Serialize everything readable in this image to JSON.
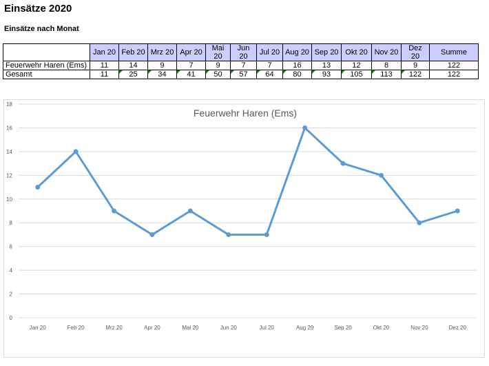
{
  "page": {
    "title": "Einsätze 2020",
    "subtitle": "Einsätze nach Monat"
  },
  "table": {
    "headers": [
      "Jan 20",
      "Feb 20",
      "Mrz 20",
      "Apr 20",
      "Mai 20",
      "Jun 20",
      "Jul 20",
      "Aug 20",
      "Sep 20",
      "Okt 20",
      "Nov 20",
      "Dez 20",
      "Summe"
    ],
    "rows": [
      {
        "label": "Feuerwehr Haren (Ems)",
        "values": [
          "11",
          "14",
          "9",
          "7",
          "9",
          "7",
          "7",
          "16",
          "13",
          "12",
          "8",
          "9",
          "122"
        ]
      },
      {
        "label": "Gesamt",
        "values": [
          "11",
          "25",
          "34",
          "41",
          "50",
          "57",
          "64",
          "80",
          "93",
          "105",
          "113",
          "122",
          "122"
        ]
      }
    ]
  },
  "chart_data": {
    "type": "line",
    "title": "Feuerwehr Haren (Ems)",
    "categories": [
      "Jan 20",
      "Feb 20",
      "Mrz 20",
      "Apr 20",
      "Mai 20",
      "Jun 20",
      "Jul 20",
      "Aug 20",
      "Sep 20",
      "Okt 20",
      "Nov 20",
      "Dez 20"
    ],
    "series": [
      {
        "values": [
          11,
          14,
          9,
          7,
          9,
          7,
          7,
          16,
          13,
          12,
          8,
          9
        ]
      }
    ],
    "ylim": [
      0,
      18
    ],
    "yticks": [
      0,
      2,
      4,
      6,
      8,
      10,
      12,
      14,
      16,
      18
    ],
    "grid": true,
    "legend": "none",
    "color": "#5b9bd5"
  }
}
